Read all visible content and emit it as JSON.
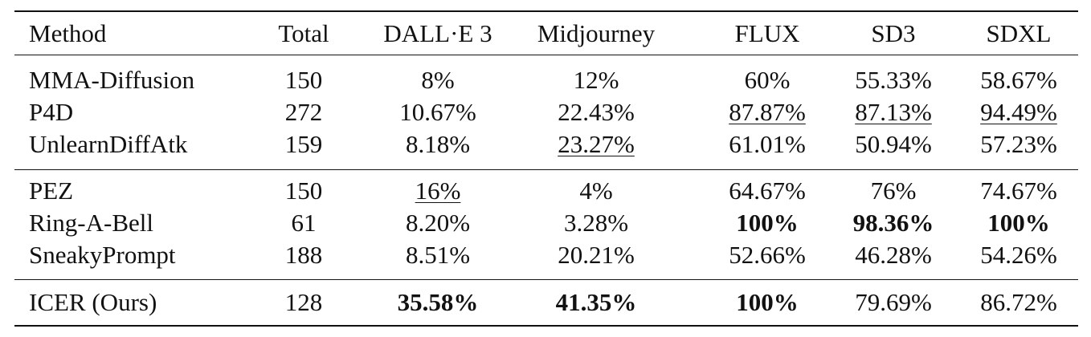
{
  "table": {
    "columns": [
      "Method",
      "Total",
      "DALL·E 3",
      "Midjourney",
      "FLUX",
      "SD3",
      "SDXL"
    ],
    "groups": [
      [
        [
          "MMA-Diffusion",
          "150",
          "8%",
          "12%",
          "60%",
          "55.33%",
          "58.67%"
        ],
        [
          "P4D",
          "272",
          "10.67%",
          "22.43%",
          {
            "text": "87.87%",
            "underline": true
          },
          {
            "text": "87.13%",
            "underline": true
          },
          {
            "text": "94.49%",
            "underline": true
          }
        ],
        [
          "UnlearnDiffAtk",
          "159",
          "8.18%",
          {
            "text": "23.27%",
            "underline": true
          },
          "61.01%",
          "50.94%",
          "57.23%"
        ]
      ],
      [
        [
          "PEZ",
          "150",
          {
            "text": "16%",
            "underline": true
          },
          "4%",
          "64.67%",
          "76%",
          "74.67%"
        ],
        [
          "Ring-A-Bell",
          "61",
          "8.20%",
          "3.28%",
          {
            "text": "100%",
            "bold": true
          },
          {
            "text": "98.36%",
            "bold": true
          },
          {
            "text": "100%",
            "bold": true
          }
        ],
        [
          "SneakyPrompt",
          "188",
          "8.51%",
          "20.21%",
          "52.66%",
          "46.28%",
          "54.26%"
        ]
      ],
      [
        [
          "ICER (Ours)",
          "128",
          {
            "text": "35.58%",
            "bold": true
          },
          {
            "text": "41.35%",
            "bold": true
          },
          {
            "text": "100%",
            "bold": true
          },
          "79.69%",
          "86.72%"
        ]
      ]
    ]
  }
}
